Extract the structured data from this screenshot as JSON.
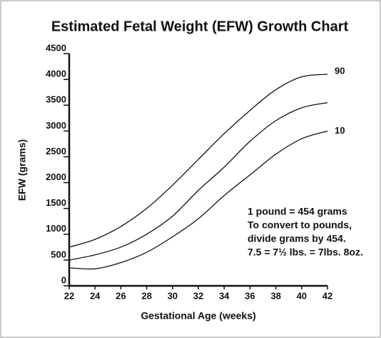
{
  "chart_data": {
    "type": "line",
    "title": "Estimated Fetal Weight (EFW) Growth Chart",
    "x_label": "Gestational Age (weeks)",
    "y_label": "EFW (grams)",
    "x": [
      22,
      24,
      26,
      28,
      30,
      32,
      34,
      36,
      38,
      40,
      42
    ],
    "series": [
      {
        "name": "90",
        "color": "#111111",
        "values": [
          750,
          900,
          1150,
          1500,
          1950,
          2450,
          2950,
          3400,
          3800,
          4050,
          4100
        ]
      },
      {
        "color": "#111111",
        "values": [
          500,
          600,
          750,
          1000,
          1350,
          1850,
          2300,
          2800,
          3200,
          3450,
          3550
        ]
      },
      {
        "name": "10",
        "color": "#111111",
        "values": [
          350,
          330,
          450,
          650,
          950,
          1300,
          1750,
          2150,
          2550,
          2850,
          3000
        ]
      }
    ],
    "xlim": [
      22,
      42
    ],
    "xticks": [
      22,
      24,
      26,
      28,
      30,
      32,
      34,
      36,
      38,
      40,
      42
    ],
    "ylim": [
      0,
      4500
    ],
    "yticks": [
      0,
      500,
      1000,
      1500,
      2000,
      2500,
      3000,
      3500,
      4000,
      4500
    ],
    "annotation": [
      "1 pound = 454 grams",
      "To convert to pounds,",
      "divide grams by 454.",
      "7.5 = 7½ lbs. = 7lbs. 8oz."
    ]
  }
}
